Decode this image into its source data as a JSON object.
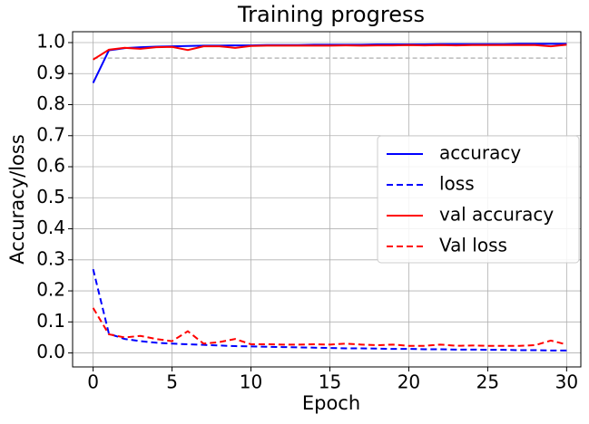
{
  "chart_data": {
    "type": "line",
    "title": "Training progress",
    "x_label": "Epoch",
    "y_label": "Accuracy/loss",
    "x": [
      0,
      1,
      2,
      3,
      4,
      5,
      6,
      7,
      8,
      9,
      10,
      11,
      12,
      13,
      14,
      15,
      16,
      17,
      18,
      19,
      20,
      21,
      22,
      23,
      24,
      25,
      26,
      27,
      28,
      29,
      30
    ],
    "series": [
      {
        "name": "accuracy",
        "color": "#0000ff",
        "dashed": false,
        "values": [
          0.87,
          0.975,
          0.982,
          0.985,
          0.987,
          0.988,
          0.989,
          0.99,
          0.99,
          0.991,
          0.991,
          0.992,
          0.992,
          0.992,
          0.993,
          0.993,
          0.993,
          0.993,
          0.994,
          0.994,
          0.994,
          0.994,
          0.995,
          0.995,
          0.995,
          0.995,
          0.995,
          0.996,
          0.996,
          0.996,
          0.996
        ]
      },
      {
        "name": "loss",
        "color": "#0000ff",
        "dashed": true,
        "values": [
          0.27,
          0.062,
          0.045,
          0.038,
          0.033,
          0.03,
          0.028,
          0.026,
          0.024,
          0.022,
          0.021,
          0.02,
          0.019,
          0.018,
          0.017,
          0.016,
          0.015,
          0.015,
          0.014,
          0.013,
          0.013,
          0.012,
          0.012,
          0.011,
          0.011,
          0.01,
          0.01,
          0.009,
          0.009,
          0.008,
          0.008
        ]
      },
      {
        "name": "val accuracy",
        "color": "#ff0000",
        "dashed": false,
        "values": [
          0.945,
          0.977,
          0.983,
          0.98,
          0.985,
          0.986,
          0.976,
          0.988,
          0.988,
          0.983,
          0.989,
          0.99,
          0.99,
          0.99,
          0.99,
          0.99,
          0.991,
          0.99,
          0.991,
          0.991,
          0.992,
          0.991,
          0.992,
          0.991,
          0.992,
          0.992,
          0.992,
          0.992,
          0.992,
          0.988,
          0.993
        ]
      },
      {
        "name": "Val loss",
        "color": "#ff0000",
        "dashed": true,
        "values": [
          0.145,
          0.06,
          0.05,
          0.055,
          0.045,
          0.038,
          0.07,
          0.03,
          0.035,
          0.045,
          0.028,
          0.028,
          0.027,
          0.027,
          0.028,
          0.027,
          0.03,
          0.027,
          0.025,
          0.027,
          0.023,
          0.023,
          0.027,
          0.023,
          0.024,
          0.023,
          0.023,
          0.023,
          0.025,
          0.04,
          0.027
        ]
      }
    ],
    "hlines": [
      {
        "y": 0.95,
        "color": "#bbbbbb",
        "dashed": true
      }
    ],
    "xlim": [
      -1.3,
      30.9
    ],
    "ylim": [
      -0.045,
      1.035
    ],
    "xticks": [
      0,
      5,
      10,
      15,
      20,
      25,
      30
    ],
    "yticks": [
      {
        "value": 0,
        "label": "0.0"
      },
      0.1,
      0.2,
      0.3,
      0.4,
      0.5,
      0.6,
      0.7,
      0.8,
      0.9,
      {
        "value": 1,
        "label": "1.0"
      }
    ],
    "grid": true,
    "legend": "center right"
  }
}
